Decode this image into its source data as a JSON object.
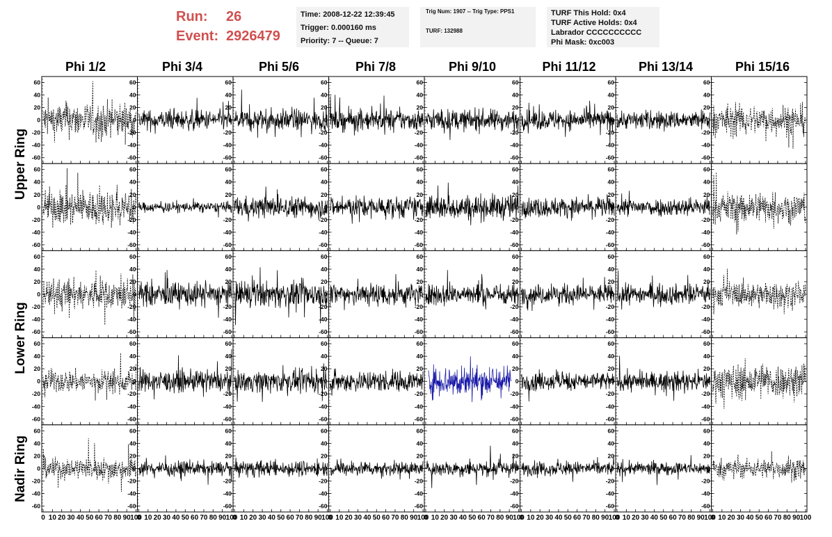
{
  "header": {
    "run_label": "Run:",
    "run_value": "26",
    "event_label": "Event:",
    "event_value": "2926479",
    "time_box": [
      "Time: 2008-12-22 12:39:45",
      "Trigger: 0.000160 ms",
      "Priority: 7 -- Queue: 7"
    ],
    "trig_box": [
      "Trig Num: 1907 -- Trig Type: PPS1",
      "TURF: 132988"
    ],
    "turf_box": [
      "TURF This Hold: 0x4",
      "TURF Active Holds: 0x4",
      "Labrador CCCCCCCCCC",
      "Phi Mask: 0xc003"
    ]
  },
  "chart_data": {
    "type": "line",
    "columns": [
      "Phi 1/2",
      "Phi 3/4",
      "Phi 5/6",
      "Phi 7/8",
      "Phi 9/10",
      "Phi 11/12",
      "Phi 13/14",
      "Phi 15/16"
    ],
    "ring_labels": [
      "Upper Ring",
      "Lower Ring",
      "Nadir Ring"
    ],
    "rows": 5,
    "xlim": [
      0,
      100
    ],
    "ylim": [
      -65,
      65
    ],
    "x_ticks": [
      0,
      10,
      20,
      30,
      40,
      50,
      60,
      70,
      80,
      90,
      100
    ],
    "y_ticks": [
      -60,
      -40,
      -20,
      0,
      20,
      40,
      60
    ],
    "x_tick_labels": [
      "0",
      "10",
      "20",
      "30",
      "40",
      "50",
      "60",
      "70",
      "80",
      "90",
      "100"
    ],
    "y_tick_labels": [
      "-60",
      "-40",
      "-20",
      "0",
      "20",
      "40",
      "60"
    ],
    "dashed_columns": [
      0,
      7
    ],
    "highlight_panel": {
      "row": 3,
      "col": 4,
      "color": "#1a1aa8",
      "x_range": [
        0,
        92
      ]
    },
    "amplitude_rows": [
      [
        25,
        14,
        15,
        15,
        15,
        14,
        13,
        22
      ],
      [
        25,
        7,
        15,
        15,
        18,
        14,
        13,
        22
      ],
      [
        22,
        17,
        18,
        17,
        15,
        14,
        14,
        18
      ],
      [
        16,
        15,
        15,
        15,
        22,
        13,
        13,
        25
      ],
      [
        16,
        10,
        11,
        10,
        11,
        10,
        9,
        14
      ]
    ],
    "samples_per_trace": 260,
    "colors": {
      "trace": "#000000",
      "highlight": "#1a1aa8"
    }
  }
}
